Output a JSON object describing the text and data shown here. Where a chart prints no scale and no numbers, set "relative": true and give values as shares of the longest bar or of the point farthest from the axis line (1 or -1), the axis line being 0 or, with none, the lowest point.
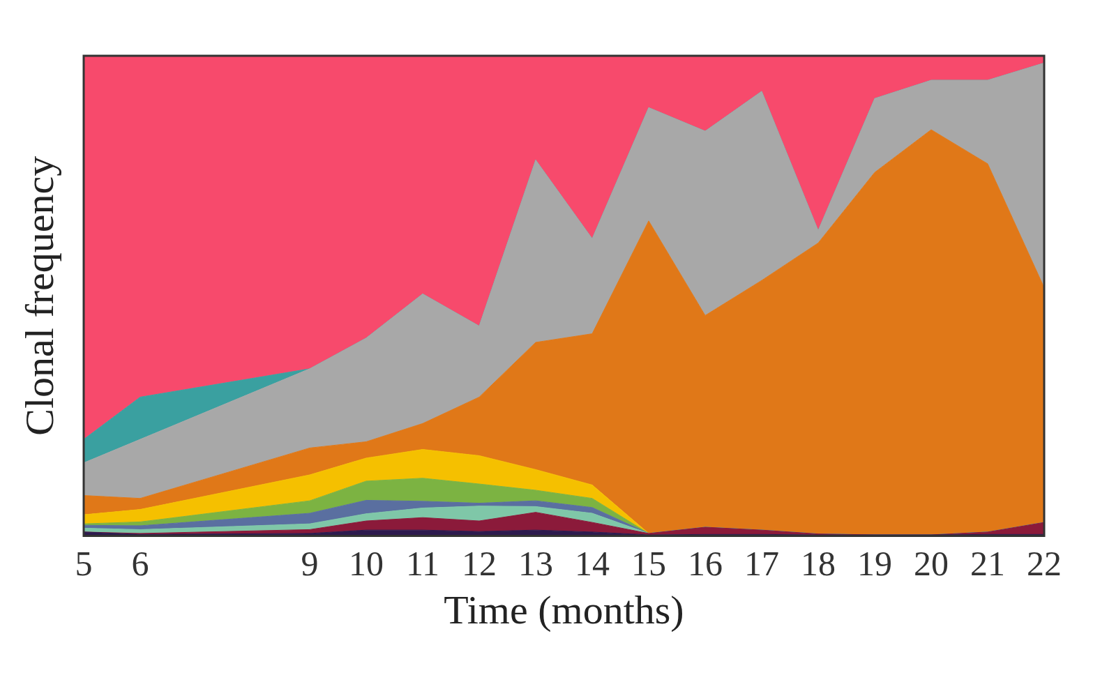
{
  "chart_data": {
    "type": "area",
    "stacked": true,
    "relative": true,
    "xlabel": "Time (months)",
    "ylabel": "Clonal frequency",
    "x": [
      5,
      6,
      9,
      10,
      11,
      12,
      13,
      14,
      15,
      16,
      17,
      18,
      19,
      20,
      21,
      22
    ],
    "xlim": [
      5,
      22
    ],
    "xticks": [
      5,
      6,
      9,
      10,
      11,
      12,
      13,
      14,
      15,
      16,
      17,
      18,
      19,
      20,
      21,
      22
    ],
    "tick_labels": "x",
    "grid": false,
    "legend": false,
    "marker": "none",
    "series": [
      {
        "color": "#2d1b4e",
        "values": [
          0.008,
          0.003,
          0.005,
          0.012,
          0.012,
          0.009,
          0.012,
          0.008,
          0.002,
          0.003,
          0.003,
          0.002,
          0.002,
          0.002,
          0.003,
          0.003
        ]
      },
      {
        "color": "#8b1a3a",
        "values": [
          0,
          0.002,
          0.008,
          0.019,
          0.026,
          0.022,
          0.037,
          0.02,
          0.003,
          0.015,
          0.009,
          0.002,
          0,
          0,
          0.005,
          0.025
        ]
      },
      {
        "color": "#7fc7a8",
        "values": [
          0.008,
          0.008,
          0.012,
          0.015,
          0.02,
          0.031,
          0.012,
          0.019,
          0,
          0,
          0,
          0,
          0,
          0,
          0,
          0
        ]
      },
      {
        "color": "#5a6fa0",
        "values": [
          0.006,
          0.008,
          0.022,
          0.028,
          0.014,
          0.006,
          0.012,
          0.012,
          0,
          0,
          0,
          0,
          0,
          0,
          0,
          0
        ]
      },
      {
        "color": "#7cb342",
        "values": [
          0.003,
          0.008,
          0.026,
          0.04,
          0.048,
          0.04,
          0.022,
          0.019,
          0,
          0,
          0,
          0,
          0,
          0,
          0,
          0
        ]
      },
      {
        "color": "#f5c000",
        "values": [
          0.019,
          0.026,
          0.054,
          0.048,
          0.06,
          0.059,
          0.043,
          0.028,
          0,
          0,
          0,
          0,
          0,
          0,
          0,
          0
        ]
      },
      {
        "color": "#e07818",
        "values": [
          0.04,
          0.023,
          0.056,
          0.034,
          0.054,
          0.122,
          0.265,
          0.315,
          0.651,
          0.441,
          0.52,
          0.606,
          0.755,
          0.844,
          0.767,
          0.489
        ]
      },
      {
        "color": "#a8a8a8",
        "values": [
          0.068,
          0.123,
          0.165,
          0.216,
          0.27,
          0.148,
          0.38,
          0.198,
          0.236,
          0.384,
          0.394,
          0.026,
          0.154,
          0.103,
          0.174,
          0.468
        ]
      },
      {
        "color": "#3aa0a0",
        "values": [
          0.049,
          0.088,
          0,
          0,
          0,
          0,
          0,
          0,
          0,
          0,
          0,
          0,
          0,
          0,
          0,
          0
        ]
      },
      {
        "color": "#f74a6c",
        "values": [
          0.799,
          0.711,
          0.652,
          0.588,
          0.496,
          0.563,
          0.217,
          0.381,
          0.108,
          0.157,
          0.074,
          0.364,
          0.089,
          0.051,
          0.051,
          0.015
        ]
      }
    ]
  }
}
